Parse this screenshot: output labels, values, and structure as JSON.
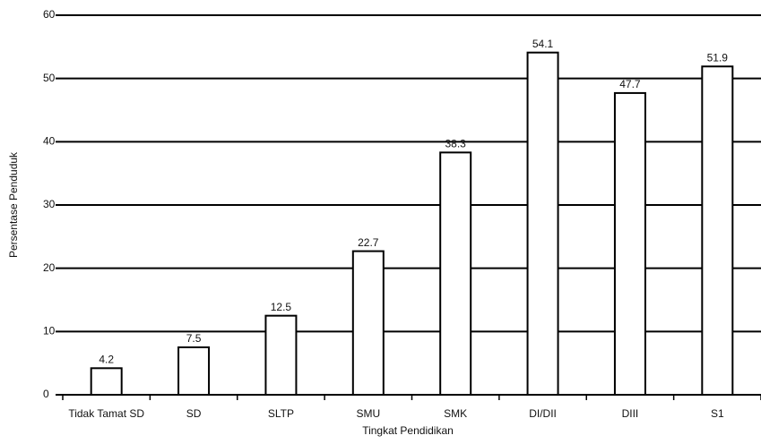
{
  "chart_data": {
    "type": "bar",
    "x_label": "Tingkat Pendidikan",
    "y_label": "Persentase Penduduk",
    "categories": [
      "Tidak Tamat SD",
      "SD",
      "SLTP",
      "SMU",
      "SMK",
      "DI/DII",
      "DIII",
      "S1"
    ],
    "values": [
      4.2,
      7.5,
      12.5,
      22.7,
      38.3,
      54.1,
      47.7,
      51.9
    ],
    "color": "#ffffff",
    "ylim": [
      0,
      60
    ],
    "yticks": [
      0,
      10,
      20,
      30,
      40,
      50,
      60
    ],
    "grid": true
  }
}
